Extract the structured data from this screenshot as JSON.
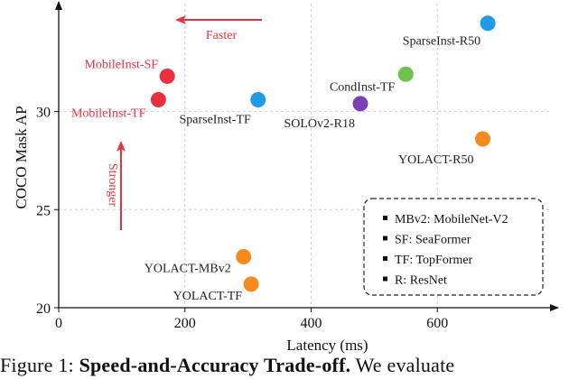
{
  "chart_data": {
    "type": "scatter",
    "xlabel": "Latency (ms)",
    "ylabel": "COCO Mask AP",
    "xlim": [
      0,
      780
    ],
    "ylim": [
      20,
      35.5
    ],
    "xticks": [
      0,
      200,
      400,
      600
    ],
    "yticks": [
      20,
      25,
      30
    ],
    "grid": true,
    "points": [
      {
        "label": "SparseInst-R50",
        "x": 680,
        "y": 34.5,
        "color": "#1f9be8",
        "text_color": "#222222"
      },
      {
        "label": "CondInst-TF",
        "x": 550,
        "y": 31.9,
        "color": "#6cc24a",
        "text_color": "#222222"
      },
      {
        "label": "MobileInst-SF",
        "x": 172,
        "y": 31.8,
        "color": "#e8303f",
        "text_color": "#e8303f"
      },
      {
        "label": "MobileInst-TF",
        "x": 158,
        "y": 30.6,
        "color": "#e8303f",
        "text_color": "#e8303f"
      },
      {
        "label": "SparseInst-TF",
        "x": 316,
        "y": 30.6,
        "color": "#1f9be8",
        "text_color": "#222222"
      },
      {
        "label": "SOLOv2-R18",
        "x": 478,
        "y": 30.4,
        "color": "#7a3fb5",
        "text_color": "#222222"
      },
      {
        "label": "YOLACT-R50",
        "x": 672,
        "y": 28.6,
        "color": "#f58a1f",
        "text_color": "#222222"
      },
      {
        "label": "YOLACT-MBv2",
        "x": 293,
        "y": 22.6,
        "color": "#f58a1f",
        "text_color": "#222222"
      },
      {
        "label": "YOLACT-TF",
        "x": 305,
        "y": 21.2,
        "color": "#f58a1f",
        "text_color": "#222222"
      }
    ],
    "annotations": {
      "faster": "Faster",
      "stronger": "Stronger"
    },
    "legend": {
      "placement": "bottom-right",
      "items": [
        "MBv2: MobileNet-V2",
        "SF: SeaFormer",
        "TF: TopFormer",
        "R: ResNet"
      ]
    }
  },
  "caption": {
    "prefix": "Figure 1:",
    "bold": "Speed-and-Accuracy Trade-off.",
    "rest": "We evaluate"
  }
}
